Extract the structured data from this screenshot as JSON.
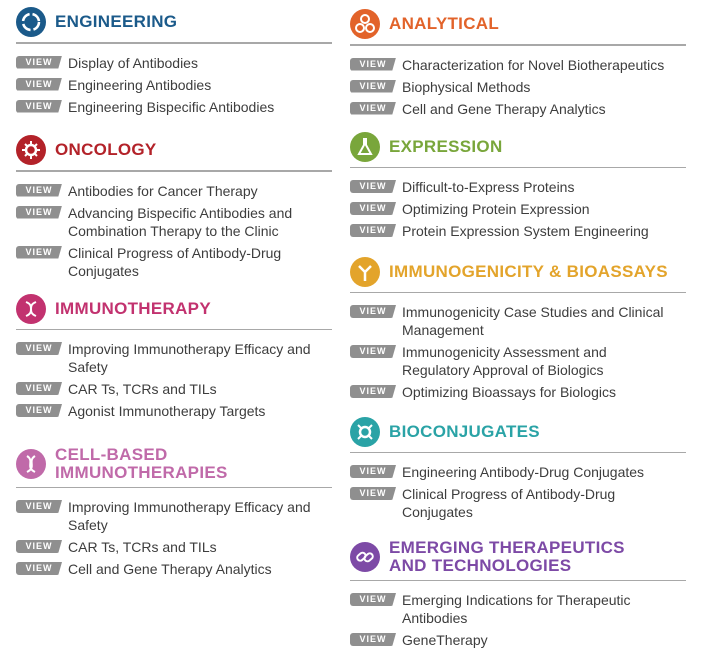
{
  "badge_label": "VIEW",
  "sections": [
    {
      "title": "ENGINEERING",
      "color": "#1b5a8a",
      "icon": "cycle-icon",
      "items": [
        "Display of Antibodies",
        "Engineering Antibodies",
        "Engineering Bispecific Antibodies"
      ]
    },
    {
      "title": "ONCOLOGY",
      "color": "#b32229",
      "icon": "virus-cell-icon",
      "items": [
        "Antibodies for Cancer Therapy",
        "Advancing Bispecific Antibodies and Combination Therapy to the Clinic",
        "Clinical Progress of Antibody-Drug Conjugates"
      ]
    },
    {
      "title": "IMMUNOTHERAPY",
      "color": "#c2326f",
      "icon": "dna-strand-icon",
      "items": [
        "Improving Immunotherapy Efficacy and Safety",
        "CAR Ts, TCRs and TILs",
        "Agonist Immunotherapy Targets"
      ]
    },
    {
      "title": "CELL-BASED IMMUNOTHERAPIES",
      "color": "#c06aa9",
      "icon": "dna-helix-icon",
      "items": [
        "Improving Immunotherapy Efficacy and Safety",
        "CAR Ts, TCRs and TILs",
        "Cell and Gene Therapy Analytics"
      ]
    },
    {
      "title": "ANALYTICAL",
      "color": "#e2632a",
      "icon": "molecules-icon",
      "items": [
        "Characterization for Novel Biotherapeutics",
        "Biophysical Methods",
        "Cell and Gene Therapy Analytics"
      ]
    },
    {
      "title": "EXPRESSION",
      "color": "#79a63b",
      "icon": "flask-icon",
      "items": [
        "Difficult-to-Express Proteins",
        "Optimizing Protein Expression",
        "Protein Expression System Engineering"
      ]
    },
    {
      "title": "IMMUNOGENICITY & BIOASSAYS",
      "color": "#e3a42b",
      "icon": "antibody-icon",
      "items": [
        "Immunogenicity Case Studies and Clinical Management",
        "Immunogenicity Assessment and Regulatory Approval of Biologics",
        "Optimizing Bioassays for Biologics"
      ]
    },
    {
      "title": "BIOCONJUGATES",
      "color": "#2aa3a6",
      "icon": "conjugate-icon",
      "items": [
        "Engineering Antibody-Drug Conjugates",
        "Clinical Progress of Antibody-Drug Conjugates"
      ]
    },
    {
      "title": "EMERGING THERAPEUTICS AND TECHNOLOGIES",
      "color": "#7d4aa6",
      "icon": "link-icon",
      "items": [
        "Emerging Indications for Therapeutic Antibodies",
        "GeneTherapy"
      ]
    }
  ]
}
